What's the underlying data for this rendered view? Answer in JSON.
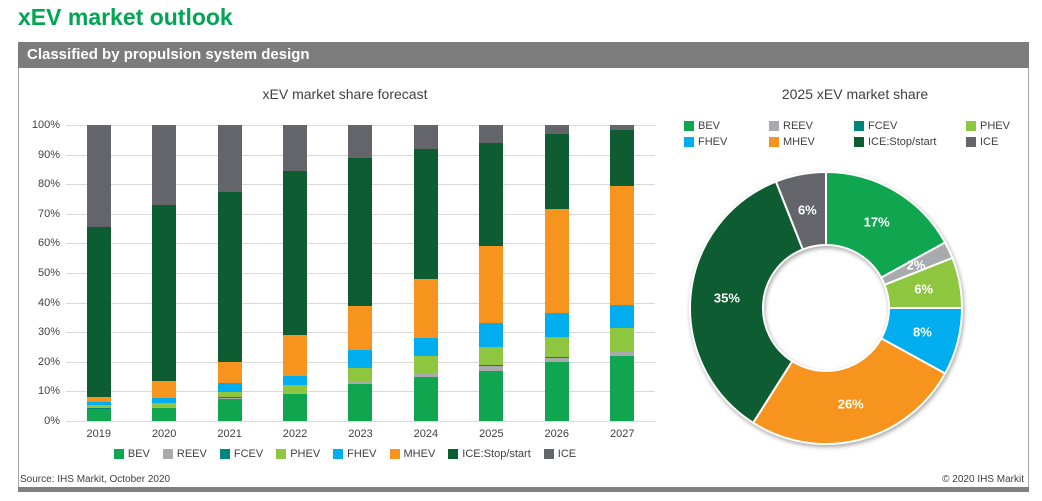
{
  "page": {
    "title": "xEV market outlook",
    "subtitle_bar": "Classified by propulsion system design",
    "footer_left": "Source: IHS Markit, October 2020",
    "footer_right": "© 2020 IHS Markit"
  },
  "colors": {
    "accent_green": "#00A651",
    "header_bar": "#7C7C7C",
    "gridline": "#D9D9D9",
    "text": "#404040"
  },
  "chart_data": [
    {
      "type": "bar",
      "stacked": true,
      "title": "xEV market share forecast",
      "categories": [
        "2019",
        "2020",
        "2021",
        "2022",
        "2023",
        "2024",
        "2025",
        "2026",
        "2027"
      ],
      "series": [
        {
          "name": "BEV",
          "color": "#10A64F",
          "values": [
            4.0,
            4.5,
            7.5,
            9.0,
            12.5,
            15.0,
            17.0,
            20.0,
            22.0
          ]
        },
        {
          "name": "REEV",
          "color": "#A8AAAD",
          "values": [
            0.2,
            0.3,
            0.4,
            0.5,
            0.7,
            0.8,
            1.7,
            1.2,
            1.5
          ]
        },
        {
          "name": "FCEV",
          "color": "#00847E",
          "values": [
            0.1,
            0.1,
            0.1,
            0.1,
            0.1,
            0.2,
            0.3,
            0.3,
            0.3
          ]
        },
        {
          "name": "PHEV",
          "color": "#8FC63F",
          "values": [
            1.0,
            1.3,
            1.8,
            2.7,
            4.7,
            6.0,
            6.0,
            7.0,
            7.5
          ]
        },
        {
          "name": "FHEV",
          "color": "#00AEEF",
          "values": [
            1.2,
            1.5,
            3.0,
            2.9,
            6.0,
            6.0,
            8.0,
            8.0,
            8.0
          ]
        },
        {
          "name": "MHEV",
          "color": "#F7941E",
          "values": [
            1.5,
            5.8,
            7.2,
            13.8,
            15.0,
            20.0,
            26.0,
            35.0,
            40.2
          ]
        },
        {
          "name": "ICE:Stop/start",
          "color": "#0E5C32",
          "values": [
            57.5,
            59.5,
            57.5,
            55.5,
            50.0,
            44.0,
            35.0,
            25.5,
            19.0
          ]
        },
        {
          "name": "ICE",
          "color": "#63656B",
          "values": [
            34.5,
            27.0,
            22.5,
            15.5,
            11.0,
            8.0,
            6.0,
            3.0,
            1.5
          ]
        }
      ],
      "ylim": [
        0,
        100
      ],
      "yticks": [
        "100%",
        "90%",
        "80%",
        "70%",
        "60%",
        "50%",
        "40%",
        "30%",
        "20%",
        "10%",
        "0%"
      ],
      "grid": true,
      "legend_position": "bottom"
    },
    {
      "type": "pie",
      "subtype": "donut",
      "title": "2025 xEV market share",
      "slices": [
        {
          "name": "BEV",
          "value": 17,
          "label": "17%",
          "color": "#10A64F"
        },
        {
          "name": "REEV",
          "value": 2,
          "label": "2%",
          "color": "#A8AAAD"
        },
        {
          "name": "FCEV",
          "value": 0,
          "label": "",
          "color": "#00847E"
        },
        {
          "name": "PHEV",
          "value": 6,
          "label": "6%",
          "color": "#8FC63F"
        },
        {
          "name": "FHEV",
          "value": 8,
          "label": "8%",
          "color": "#00AEEF"
        },
        {
          "name": "MHEV",
          "value": 26,
          "label": "26%",
          "color": "#F7941E"
        },
        {
          "name": "ICE:Stop/start",
          "value": 35,
          "label": "35%",
          "color": "#0E5C32"
        },
        {
          "name": "ICE",
          "value": 6,
          "label": "6%",
          "color": "#63656B"
        }
      ],
      "legend_position": "top"
    }
  ]
}
